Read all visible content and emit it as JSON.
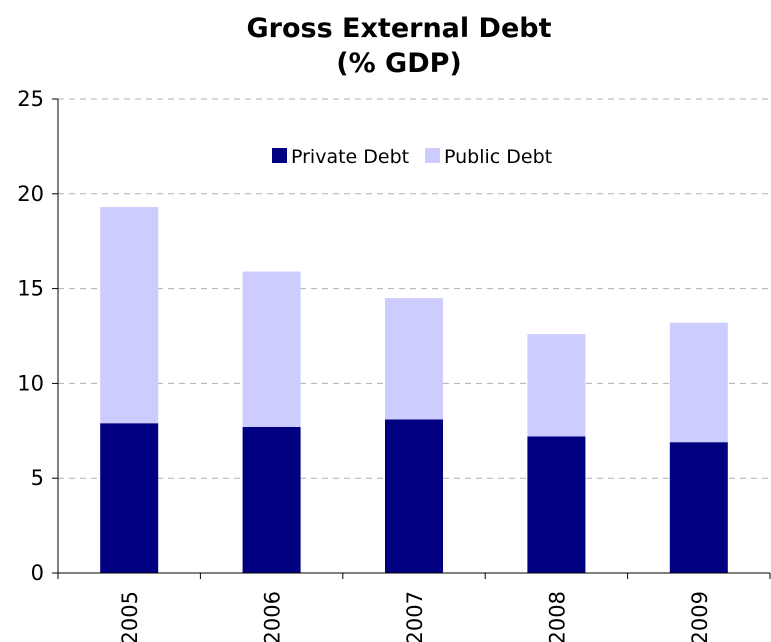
{
  "chart_data": {
    "type": "bar",
    "stacked": true,
    "title": "Gross External Debt",
    "subtitle": "(% GDP)",
    "xlabel": "",
    "ylabel": "",
    "categories": [
      "2005",
      "2006",
      "2007",
      "2008",
      "2009"
    ],
    "series": [
      {
        "name": "Private Debt",
        "color": "#000080",
        "values": [
          7.9,
          7.7,
          8.1,
          7.2,
          6.9
        ]
      },
      {
        "name": "Public Debt",
        "color": "#ccccff",
        "values": [
          11.4,
          8.2,
          6.4,
          5.4,
          6.3
        ]
      }
    ],
    "ylim": [
      0,
      25
    ],
    "yticks": [
      0,
      5,
      10,
      15,
      20,
      25
    ],
    "grid": "horizontal dashed",
    "legend_position": "top-center"
  }
}
